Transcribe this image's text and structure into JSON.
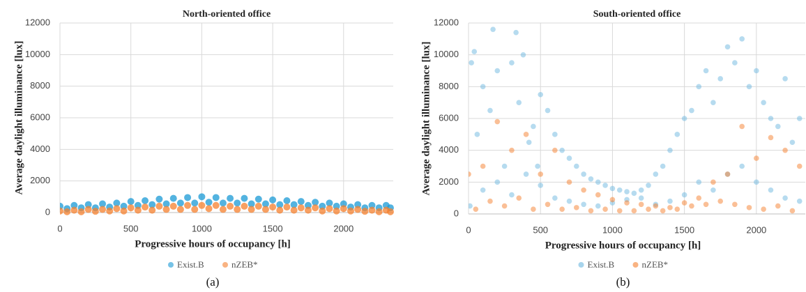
{
  "chart_data": [
    {
      "type": "scatter",
      "title": "North-oriented office",
      "xlabel": "Progressive hours of occupancy [h]",
      "ylabel": "Average daylight illuminance [lux]",
      "caption": "(a)",
      "xlim": [
        0,
        2350
      ],
      "ylim": [
        0,
        12000
      ],
      "xticks": [
        0,
        500,
        1000,
        1500,
        2000
      ],
      "yticks": [
        0,
        2000,
        4000,
        6000,
        8000,
        10000,
        12000
      ],
      "grid": true,
      "series": [
        {
          "name": "Exist.B",
          "color": "#1a9ad6",
          "x": [
            0,
            100,
            200,
            300,
            400,
            500,
            600,
            700,
            800,
            900,
            1000,
            1100,
            1200,
            1300,
            1400,
            1500,
            1600,
            1700,
            1800,
            1900,
            2000,
            2100,
            2200,
            2300,
            50,
            150,
            250,
            350,
            450,
            550,
            650,
            750,
            850,
            950,
            1050,
            1150,
            1250,
            1350,
            1450,
            1550,
            1650,
            1750,
            1850,
            1950,
            2050,
            2150,
            2250,
            2330
          ],
          "values": [
            400,
            450,
            500,
            550,
            600,
            700,
            750,
            850,
            900,
            950,
            1000,
            950,
            900,
            900,
            850,
            800,
            750,
            700,
            650,
            600,
            550,
            500,
            450,
            450,
            250,
            300,
            300,
            350,
            400,
            450,
            500,
            550,
            600,
            600,
            650,
            600,
            600,
            550,
            550,
            500,
            500,
            450,
            400,
            400,
            350,
            300,
            300,
            300
          ]
        },
        {
          "name": "nZEB*",
          "color": "#f5802e",
          "x": [
            0,
            100,
            200,
            300,
            400,
            500,
            600,
            700,
            800,
            900,
            1000,
            1100,
            1200,
            1300,
            1400,
            1500,
            1600,
            1700,
            1800,
            1900,
            2000,
            2100,
            2200,
            2300,
            50,
            150,
            250,
            350,
            450,
            550,
            650,
            750,
            850,
            950,
            1050,
            1150,
            1250,
            1350,
            1450,
            1550,
            1650,
            1750,
            1850,
            1950,
            2050,
            2150,
            2250,
            2330
          ],
          "values": [
            100,
            150,
            200,
            200,
            250,
            300,
            350,
            400,
            400,
            450,
            450,
            450,
            400,
            400,
            400,
            350,
            350,
            300,
            300,
            250,
            250,
            200,
            150,
            150,
            50,
            50,
            80,
            100,
            100,
            150,
            150,
            200,
            200,
            200,
            250,
            200,
            200,
            200,
            200,
            150,
            150,
            150,
            100,
            100,
            100,
            80,
            50,
            50
          ]
        }
      ]
    },
    {
      "type": "scatter",
      "title": "South-oriented office",
      "xlabel": "Progressive hours of occupancy [h]",
      "ylabel": "Average daylight illuminance [lux]",
      "caption": "(b)",
      "xlim": [
        0,
        2340
      ],
      "ylim": [
        0,
        12000
      ],
      "xticks": [
        0,
        500,
        1000,
        1500,
        2000
      ],
      "yticks": [
        0,
        2000,
        4000,
        6000,
        8000,
        10000,
        12000
      ],
      "grid": true,
      "series": [
        {
          "name": "Exist.B",
          "color": "#6db8e0",
          "x": [
            20,
            40,
            60,
            100,
            150,
            170,
            200,
            250,
            300,
            330,
            350,
            380,
            420,
            450,
            480,
            500,
            550,
            600,
            650,
            700,
            750,
            800,
            850,
            900,
            950,
            1000,
            1050,
            1100,
            1150,
            1200,
            1250,
            1300,
            1350,
            1400,
            1450,
            1500,
            1550,
            1600,
            1650,
            1700,
            1750,
            1800,
            1850,
            1900,
            1950,
            2000,
            2050,
            2100,
            2150,
            2200,
            2250,
            2300,
            10,
            100,
            200,
            300,
            400,
            500,
            600,
            700,
            800,
            900,
            1000,
            1100,
            1200,
            1300,
            1400,
            1500,
            1600,
            1700,
            1800,
            1900,
            2000,
            2100,
            2200,
            2300
          ],
          "values": [
            9500,
            10200,
            5000,
            8000,
            6500,
            11600,
            9000,
            3000,
            9500,
            11400,
            7000,
            10000,
            4500,
            5500,
            3000,
            7500,
            6500,
            5000,
            4000,
            3500,
            3000,
            2500,
            2200,
            2000,
            1800,
            1600,
            1500,
            1400,
            1300,
            1500,
            1800,
            2500,
            3000,
            4000,
            5000,
            6000,
            6500,
            8000,
            9000,
            7000,
            8500,
            10500,
            9500,
            11000,
            8000,
            9000,
            7000,
            6000,
            5500,
            8500,
            4500,
            6000,
            500,
            1500,
            2000,
            1200,
            2500,
            1800,
            1000,
            800,
            600,
            500,
            700,
            900,
            1000,
            600,
            800,
            1200,
            2000,
            1500,
            2500,
            3000,
            2000,
            1500,
            1000,
            800
          ]
        },
        {
          "name": "nZEB*",
          "color": "#f5802e",
          "x": [
            0,
            100,
            200,
            300,
            400,
            500,
            600,
            700,
            800,
            900,
            1000,
            1100,
            1200,
            1300,
            1400,
            1500,
            1600,
            1700,
            1800,
            1900,
            2000,
            2100,
            2200,
            2300,
            50,
            150,
            250,
            350,
            450,
            550,
            650,
            750,
            850,
            950,
            1050,
            1150,
            1250,
            1350,
            1450,
            1550,
            1650,
            1750,
            1850,
            1950,
            2050,
            2150,
            2250
          ],
          "values": [
            2500,
            3000,
            5800,
            4000,
            5000,
            2500,
            4000,
            2000,
            1500,
            1200,
            900,
            700,
            600,
            500,
            400,
            700,
            1000,
            2000,
            2500,
            5500,
            3500,
            4800,
            4000,
            3000,
            300,
            800,
            500,
            1000,
            300,
            600,
            300,
            400,
            200,
            300,
            200,
            200,
            300,
            200,
            300,
            500,
            600,
            800,
            600,
            400,
            300,
            500,
            200
          ]
        }
      ]
    }
  ]
}
